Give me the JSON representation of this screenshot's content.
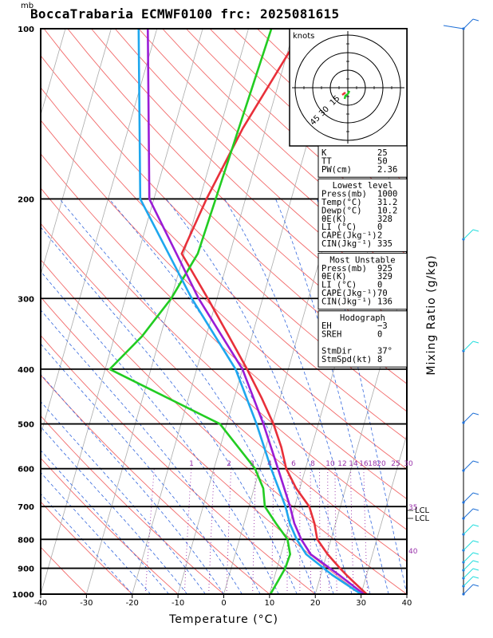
{
  "title": "BoccaTrabaria ECMWF0100 frc: 2025081615",
  "pressure_unit": "mb",
  "chart_data": {
    "type": "line",
    "xlabel": "Temperature (°C)",
    "ylabel": "Mixing Ratio (g/kg)",
    "x_ticks": [
      -40,
      -30,
      -20,
      -10,
      0,
      10,
      20,
      30,
      40
    ],
    "p_ticks": [
      100,
      200,
      300,
      400,
      500,
      600,
      700,
      800,
      900,
      1000
    ],
    "xlim": [
      -40,
      40
    ],
    "plim": [
      1000,
      100
    ],
    "mixing_ratio_labels": [
      "1",
      "2",
      "3",
      "4",
      "6",
      "8",
      "10",
      "12",
      "14",
      "16",
      "18",
      "20",
      "25",
      "30"
    ],
    "lcl_labels": [
      "LCL",
      "LCL"
    ],
    "side_labels": [
      "35",
      "40"
    ],
    "series": [
      {
        "name": "",
        "color": "#e8303a",
        "points": [
          [
            1000,
            31.2
          ],
          [
            950,
            27.5
          ],
          [
            925,
            25.6
          ],
          [
            900,
            23.8
          ],
          [
            850,
            20.2
          ],
          [
            800,
            17.0
          ],
          [
            750,
            15.4
          ],
          [
            700,
            13.2
          ],
          [
            650,
            9.2
          ],
          [
            600,
            5.8
          ],
          [
            550,
            3.4
          ],
          [
            500,
            0.2
          ],
          [
            450,
            -4.0
          ],
          [
            400,
            -9.0
          ],
          [
            350,
            -15.0
          ],
          [
            300,
            -22.0
          ],
          [
            250,
            -30.5
          ],
          [
            200,
            -28.5
          ],
          [
            150,
            -25.0
          ],
          [
            100,
            -18.0
          ]
        ]
      },
      {
        "name": "",
        "color": "#22cc22",
        "points": [
          [
            1000,
            10.2
          ],
          [
            950,
            11.0
          ],
          [
            900,
            11.8
          ],
          [
            850,
            12.0
          ],
          [
            800,
            10.5
          ],
          [
            750,
            7.0
          ],
          [
            700,
            3.5
          ],
          [
            650,
            2.0
          ],
          [
            600,
            -1.0
          ],
          [
            500,
            -11.5
          ],
          [
            400,
            -39.0
          ],
          [
            350,
            -34.0
          ],
          [
            300,
            -30.0
          ],
          [
            250,
            -27.0
          ],
          [
            200,
            -26.5
          ],
          [
            100,
            -25.0
          ]
        ]
      },
      {
        "name": "",
        "color": "#9a1cd6",
        "points": [
          [
            1000,
            30.6
          ],
          [
            925,
            24.0
          ],
          [
            850,
            16.5
          ],
          [
            800,
            13.5
          ],
          [
            750,
            11.0
          ],
          [
            700,
            9.0
          ],
          [
            600,
            4.0
          ],
          [
            500,
            -2.0
          ],
          [
            400,
            -10.0
          ],
          [
            300,
            -24.0
          ],
          [
            200,
            -41.0
          ],
          [
            100,
            -52.0
          ]
        ]
      },
      {
        "name": "",
        "color": "#1ea7ee",
        "points": [
          [
            1000,
            30.0
          ],
          [
            925,
            22.5
          ],
          [
            850,
            15.5
          ],
          [
            800,
            12.5
          ],
          [
            750,
            10.0
          ],
          [
            700,
            8.0
          ],
          [
            600,
            2.5
          ],
          [
            500,
            -3.5
          ],
          [
            400,
            -11.5
          ],
          [
            300,
            -25.5
          ],
          [
            200,
            -43.0
          ],
          [
            100,
            -54.0
          ]
        ]
      }
    ],
    "hodograph": {
      "label": "knots",
      "rings": [
        "15",
        "30",
        "45"
      ]
    }
  },
  "indices": [
    {
      "rows": [
        [
          "K",
          "25"
        ],
        [
          "TT",
          "50"
        ],
        [
          "PW(cm)",
          "2.36"
        ]
      ]
    },
    {
      "header": "Lowest level",
      "rows": [
        [
          "Press(mb)",
          "1000"
        ],
        [
          "Temp(°C)",
          "31.2"
        ],
        [
          "Dewp(°C)",
          "10.2"
        ],
        [
          "θE(K)",
          "328"
        ],
        [
          "LI (°C)",
          "0"
        ],
        [
          "CAPE(Jkg⁻¹)",
          "2"
        ],
        [
          "CIN(Jkg⁻¹)",
          "335"
        ]
      ]
    },
    {
      "header": "Most Unstable",
      "rows": [
        [
          "Press(mb)",
          "925"
        ],
        [
          "θE(K)",
          "329"
        ],
        [
          "LI (°C)",
          "0"
        ],
        [
          "CAPE(Jkg⁻¹)",
          "70"
        ],
        [
          "CIN(Jkg⁻¹)",
          "136"
        ]
      ]
    },
    {
      "header": "Hodograph",
      "rows": [
        [
          "EH",
          "−3"
        ],
        [
          "SREH",
          "0"
        ],
        [
          "",
          ""
        ],
        [
          "StmDir",
          "37°"
        ],
        [
          "StmSpd(kt)",
          "8"
        ]
      ]
    }
  ]
}
